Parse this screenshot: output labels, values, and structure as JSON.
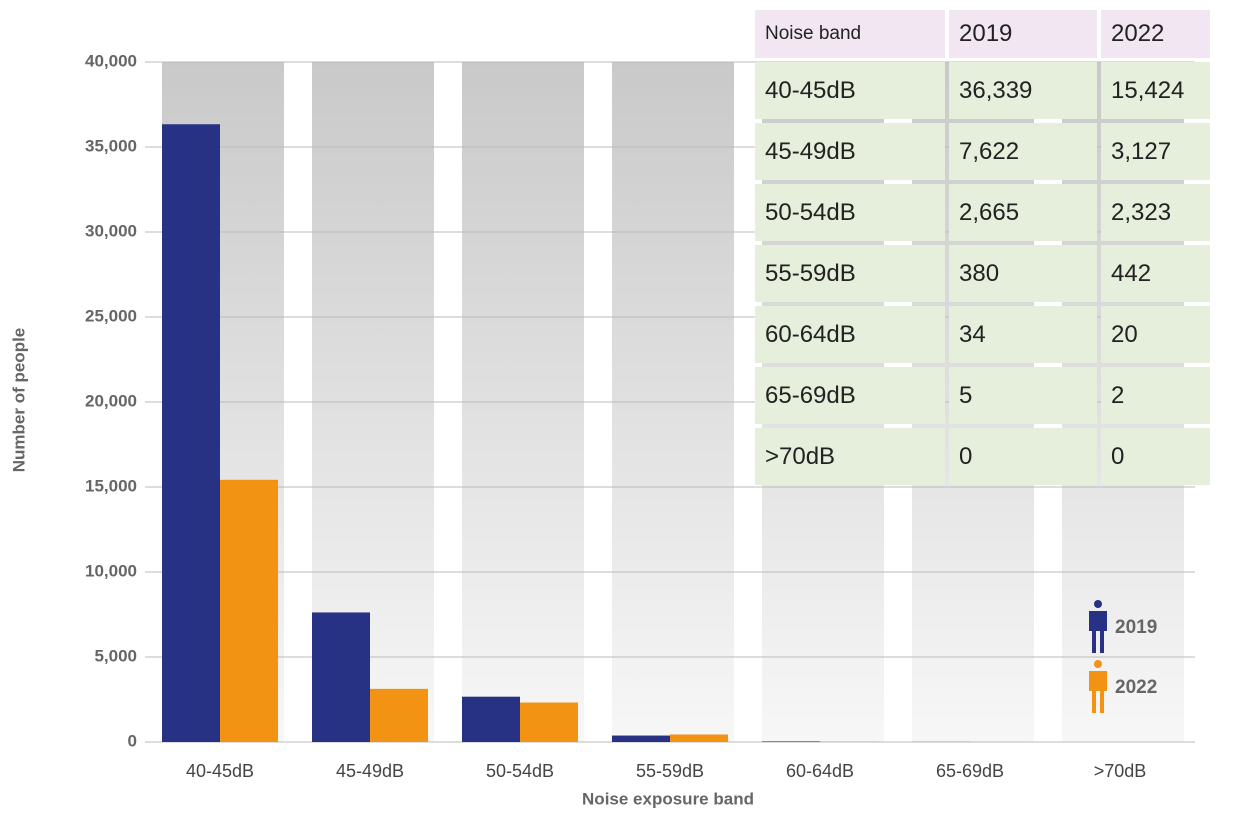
{
  "chart_data": {
    "type": "bar",
    "xlabel": "Noise exposure band",
    "ylabel": "Number of people",
    "categories": [
      "40-45dB",
      "45-49dB",
      "50-54dB",
      "55-59dB",
      "60-64dB",
      "65-69dB",
      ">70dB"
    ],
    "series": [
      {
        "name": "2019",
        "color": "#283285",
        "values": [
          36339,
          7622,
          2665,
          380,
          34,
          5,
          0
        ]
      },
      {
        "name": "2022",
        "color": "#f39313",
        "values": [
          15424,
          3127,
          2323,
          442,
          20,
          2,
          0
        ]
      }
    ],
    "ylim": [
      0,
      40000
    ],
    "yticks": [
      0,
      {
        "value": 5000,
        "label": "5,000"
      },
      {
        "value": 10000,
        "label": "10,000"
      },
      {
        "value": 15000,
        "label": "15,000"
      },
      {
        "value": 20000,
        "label": "20,000"
      },
      {
        "value": 25000,
        "label": "25,000"
      },
      {
        "value": 30000,
        "label": "30,000"
      },
      {
        "value": 35000,
        "label": "35,000"
      },
      {
        "value": 40000,
        "label": "40,000"
      }
    ],
    "grid": true,
    "legend": "lower right"
  },
  "table": {
    "header": [
      "Noise band",
      "2019",
      "2022"
    ],
    "rows": [
      [
        "40-45dB",
        "36,339",
        "15,424"
      ],
      [
        "45-49dB",
        "7,622",
        "3,127"
      ],
      [
        "50-54dB",
        "2,665",
        "2,323"
      ],
      [
        "55-59dB",
        "380",
        "442"
      ],
      [
        "60-64dB",
        "34",
        "20"
      ],
      [
        "65-69dB",
        "5",
        "2"
      ],
      [
        ">70dB",
        "0",
        "0"
      ]
    ]
  }
}
